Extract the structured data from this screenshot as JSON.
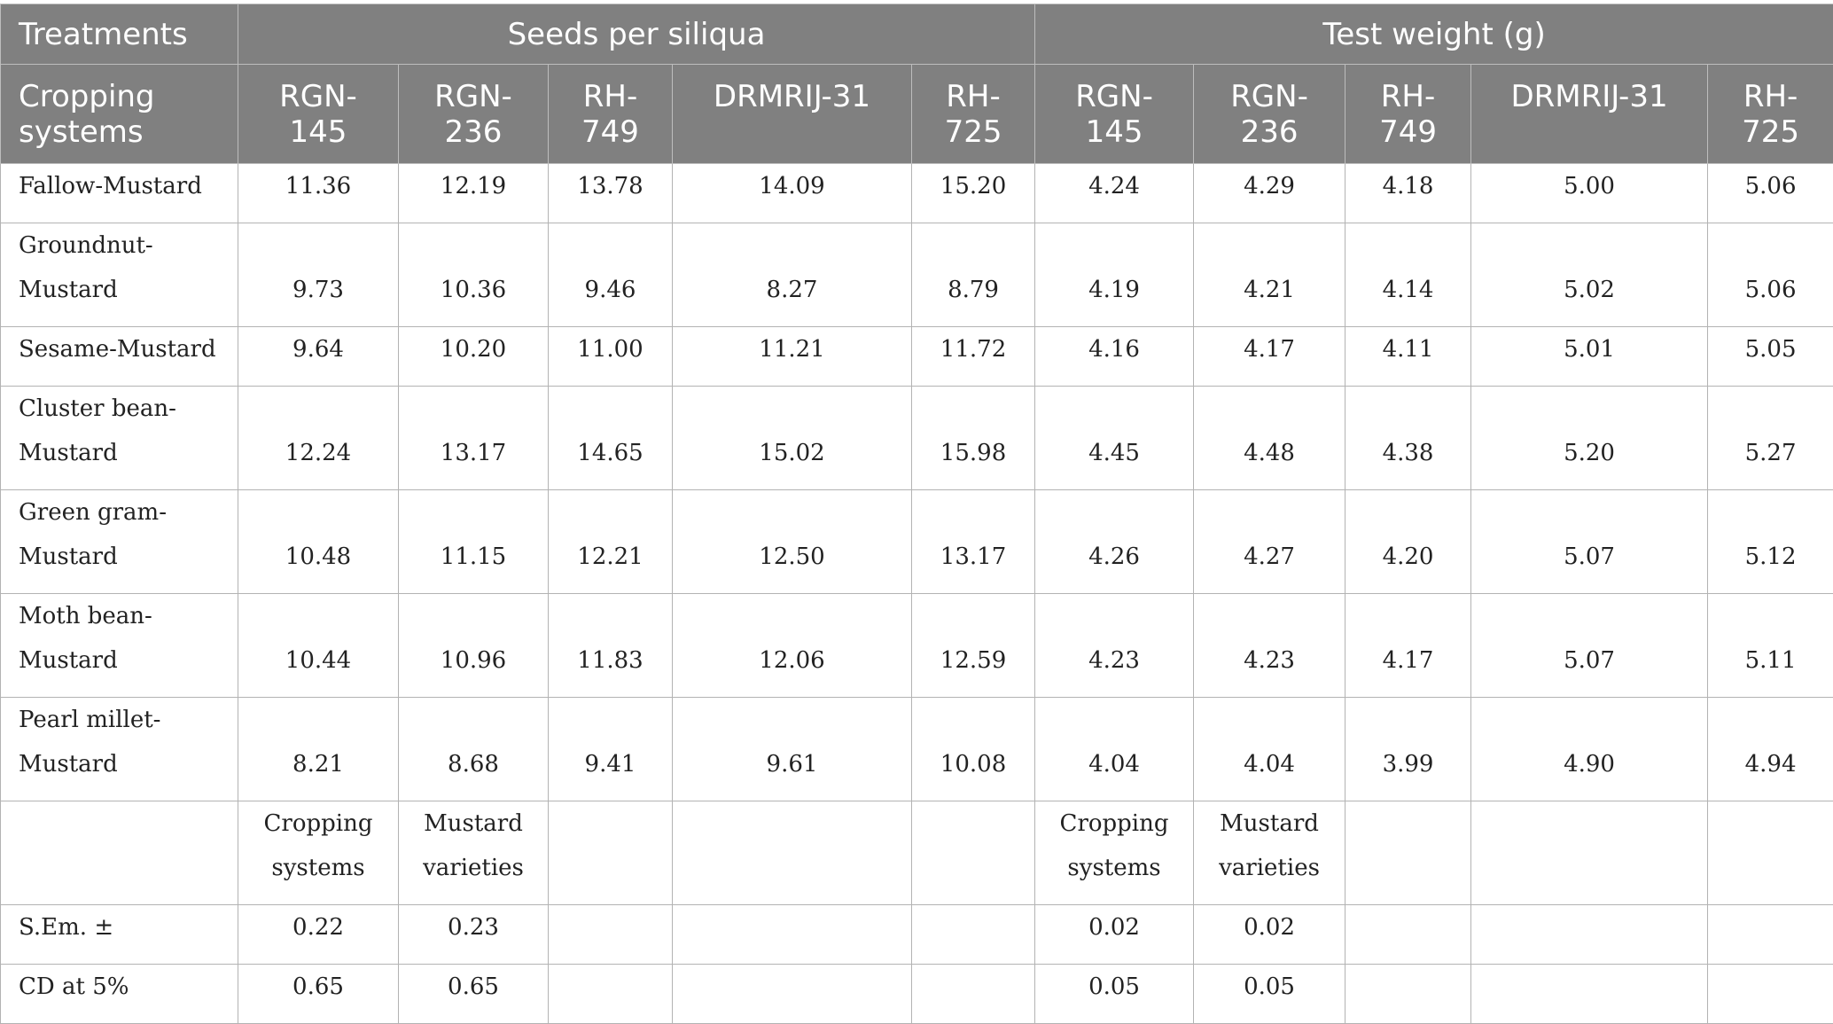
{
  "header": {
    "treatments": "Treatments",
    "seeds_per_siliqua": "Seeds per siliqua",
    "test_weight": "Test weight (g)",
    "cropping_systems": [
      "Cropping",
      "systems"
    ],
    "varieties": [
      [
        "RGN-",
        "145"
      ],
      [
        "RGN-",
        "236"
      ],
      [
        "RH-",
        "749"
      ],
      [
        "DRMRIJ-31",
        ""
      ],
      [
        "RH-",
        "725"
      ]
    ]
  },
  "rows": [
    {
      "label": [
        "Fallow-Mustard"
      ],
      "seeds": [
        "11.36",
        "12.19",
        "13.78",
        "14.09",
        "15.20"
      ],
      "weight": [
        "4.24",
        "4.29",
        "4.18",
        "5.00",
        "5.06"
      ]
    },
    {
      "label": [
        "Groundnut-",
        "Mustard"
      ],
      "seeds": [
        "9.73",
        "10.36",
        "9.46",
        "8.27",
        "8.79"
      ],
      "weight": [
        "4.19",
        "4.21",
        "4.14",
        "5.02",
        "5.06"
      ]
    },
    {
      "label": [
        "Sesame-Mustard"
      ],
      "seeds": [
        "9.64",
        "10.20",
        "11.00",
        "11.21",
        "11.72"
      ],
      "weight": [
        "4.16",
        "4.17",
        "4.11",
        "5.01",
        "5.05"
      ]
    },
    {
      "label": [
        "Cluster bean-",
        "Mustard"
      ],
      "seeds": [
        "12.24",
        "13.17",
        "14.65",
        "15.02",
        "15.98"
      ],
      "weight": [
        "4.45",
        "4.48",
        "4.38",
        "5.20",
        "5.27"
      ]
    },
    {
      "label": [
        "Green gram-",
        "Mustard"
      ],
      "seeds": [
        "10.48",
        "11.15",
        "12.21",
        "12.50",
        "13.17"
      ],
      "weight": [
        "4.26",
        "4.27",
        "4.20",
        "5.07",
        "5.12"
      ]
    },
    {
      "label": [
        "Moth bean-",
        "Mustard"
      ],
      "seeds": [
        "10.44",
        "10.96",
        "11.83",
        "12.06",
        "12.59"
      ],
      "weight": [
        "4.23",
        "4.23",
        "4.17",
        "5.07",
        "5.11"
      ]
    },
    {
      "label": [
        "Pearl millet-",
        "Mustard"
      ],
      "seeds": [
        "8.21",
        "8.68",
        "9.41",
        "9.61",
        "10.08"
      ],
      "weight": [
        "4.04",
        "4.04",
        "3.99",
        "4.90",
        "4.94"
      ]
    }
  ],
  "stats_header": {
    "seeds": [
      [
        "Cropping",
        "systems"
      ],
      [
        "Mustard",
        "varieties"
      ]
    ],
    "weight": [
      [
        "Cropping",
        "systems"
      ],
      [
        "Mustard",
        "varieties"
      ]
    ]
  },
  "stats": [
    {
      "label": "S.Em. ±",
      "seeds": [
        "0.22",
        "0.23"
      ],
      "weight": [
        "0.02",
        "0.02"
      ]
    },
    {
      "label": "CD at 5%",
      "seeds": [
        "0.65",
        "0.65"
      ],
      "weight": [
        "0.05",
        "0.05"
      ]
    }
  ]
}
